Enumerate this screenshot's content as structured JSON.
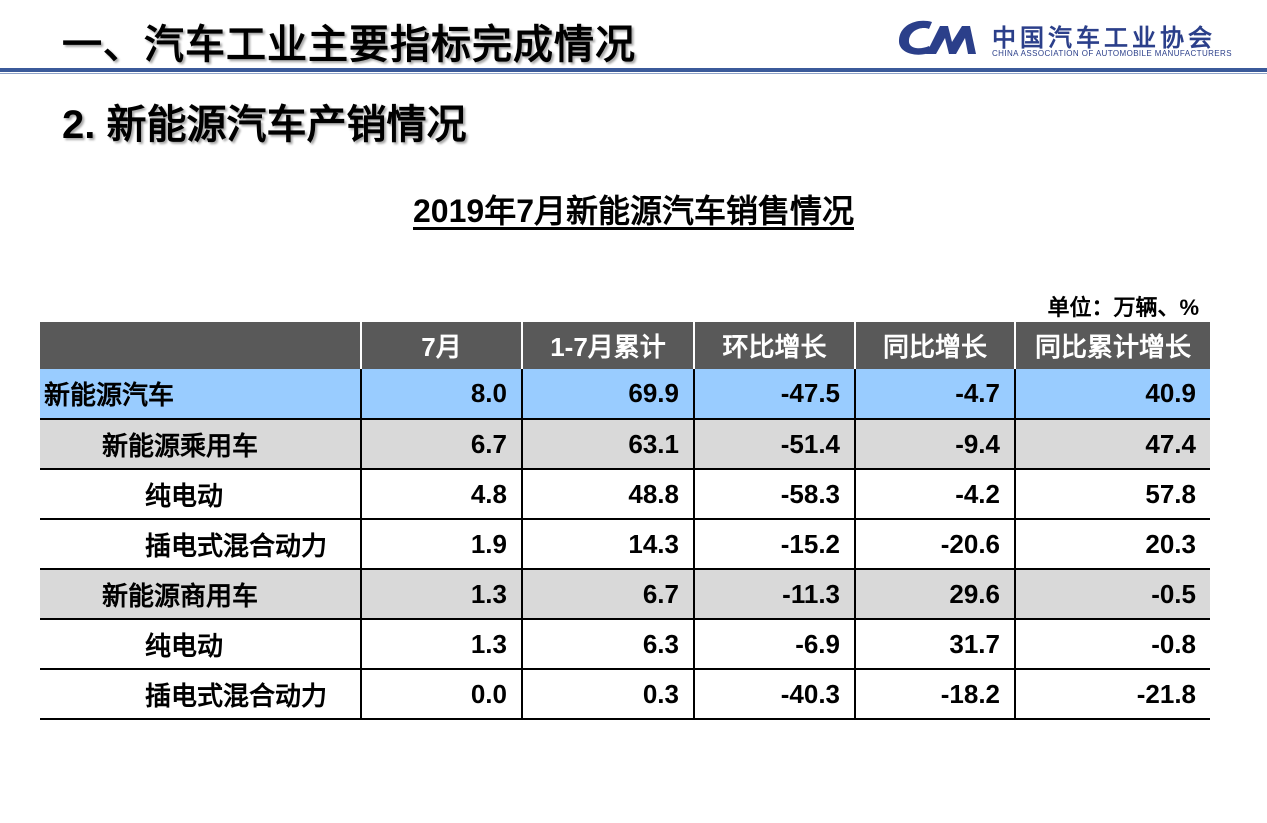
{
  "header": {
    "heading_main": "一、汽车工业主要指标完成情况",
    "heading_sub": "2. 新能源汽车产销情况",
    "logo": {
      "name_cn": "中国汽车工业协会",
      "name_en": "CHINA ASSOCIATION OF AUTOMOBILE MANUFACTURERS",
      "color": "#2b3f8a"
    },
    "rule_color": "#3b5a9a"
  },
  "table": {
    "title": "2019年7月新能源汽车销售情况",
    "unit": "单位：万辆、%",
    "columns": [
      "",
      "7月",
      "1-7月累计",
      "环比增长",
      "同比增长",
      "同比累计增长"
    ],
    "header_bg": "#595959",
    "rows": [
      {
        "label": "新能源汽车",
        "level": 0,
        "values": [
          "8.0",
          "69.9",
          "-47.5",
          "-4.7",
          "40.9"
        ],
        "bg": "#99ccff"
      },
      {
        "label": "新能源乘用车",
        "level": 1,
        "values": [
          "6.7",
          "63.1",
          "-51.4",
          "-9.4",
          "47.4"
        ],
        "bg": "#d9d9d9"
      },
      {
        "label": "纯电动",
        "level": 2,
        "values": [
          "4.8",
          "48.8",
          "-58.3",
          "-4.2",
          "57.8"
        ],
        "bg": "#ffffff"
      },
      {
        "label": "插电式混合动力",
        "level": 2,
        "values": [
          "1.9",
          "14.3",
          "-15.2",
          "-20.6",
          "20.3"
        ],
        "bg": "#ffffff"
      },
      {
        "label": "新能源商用车",
        "level": 1,
        "values": [
          "1.3",
          "6.7",
          "-11.3",
          "29.6",
          "-0.5"
        ],
        "bg": "#d9d9d9"
      },
      {
        "label": "纯电动",
        "level": 2,
        "values": [
          "1.3",
          "6.3",
          "-6.9",
          "31.7",
          "-0.8"
        ],
        "bg": "#ffffff"
      },
      {
        "label": "插电式混合动力",
        "level": 2,
        "values": [
          "0.0",
          "0.3",
          "-40.3",
          "-18.2",
          "-21.8"
        ],
        "bg": "#ffffff"
      }
    ]
  }
}
